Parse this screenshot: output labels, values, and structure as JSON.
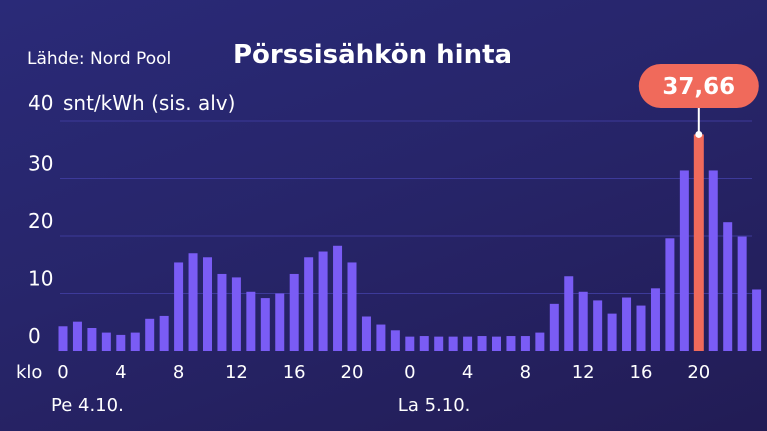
{
  "header": {
    "source": "Lähde: Nord Pool",
    "title": "Pörssisähkön hinta"
  },
  "chart_data": {
    "type": "bar",
    "title": "Pörssisähkön hinta",
    "unit_label": "snt/kWh (sis. alv)",
    "ylim": [
      0,
      40
    ],
    "y_ticks": [
      "0",
      "10",
      "20",
      "30",
      "40"
    ],
    "x_prefix": "klo",
    "x_tick_labels": [
      "0",
      "4",
      "8",
      "12",
      "16",
      "20",
      "0",
      "4",
      "8",
      "12",
      "16",
      "20"
    ],
    "day_labels": [
      "Pe 4.10.",
      "La 5.10."
    ],
    "grid": true,
    "highlight": {
      "value": 37.66,
      "label": "37,66",
      "color": "#f06a5b"
    },
    "bar_color": "#7a5cf5",
    "series": [
      {
        "values": [
          4.3,
          5.1,
          4.0,
          3.2,
          2.8,
          3.2,
          5.6,
          6.1,
          15.4,
          17.0,
          16.3,
          13.4,
          12.8,
          10.3,
          9.2,
          10.0,
          13.4,
          16.3,
          17.3,
          18.3,
          15.4,
          6.0,
          4.6,
          3.6,
          2.5,
          2.6,
          2.5,
          2.5,
          2.5,
          2.6,
          2.5,
          2.6,
          2.6,
          3.2,
          8.2,
          13.0,
          10.3,
          8.8,
          6.5,
          9.3,
          7.9,
          10.9,
          19.6,
          31.4,
          37.66,
          31.4,
          22.4,
          19.9,
          10.7
        ]
      }
    ]
  }
}
